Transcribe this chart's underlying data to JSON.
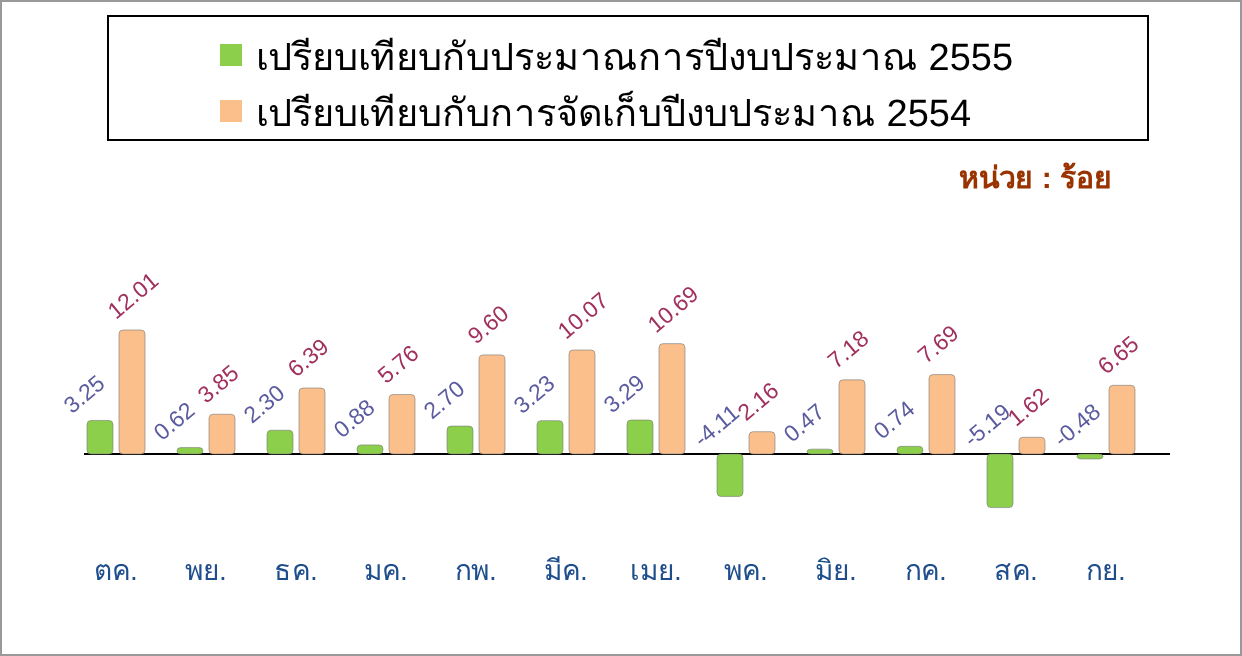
{
  "chart_data": {
    "type": "bar",
    "categories": [
      "ตค.",
      "พย.",
      "ธค.",
      "มค.",
      "กพ.",
      "มีค.",
      "เมย.",
      "พค.",
      "มิย.",
      "กค.",
      "สค.",
      "กย."
    ],
    "series": [
      {
        "name": "เปรียบเทียบกับประมาณการปีงบประมาณ 2555",
        "color": "#8ccf4a",
        "values": [
          3.25,
          0.62,
          2.3,
          0.88,
          2.7,
          3.23,
          3.29,
          -4.11,
          0.47,
          0.74,
          -5.19,
          -0.48
        ],
        "value_labels": [
          "3.25",
          "0.62",
          "2.30",
          "0.88",
          "2.70",
          "3.23",
          "3.29",
          "-4.11",
          "0.47",
          "0.74",
          "-5.19",
          "-0.48"
        ]
      },
      {
        "name": "เปรียบเทียบกับการจัดเก็บปีงบประมาณ 2554",
        "color": "#fbbf8c",
        "values": [
          12.01,
          3.85,
          6.39,
          5.76,
          9.6,
          10.07,
          10.69,
          2.16,
          7.18,
          7.69,
          1.62,
          6.65
        ],
        "value_labels": [
          "12.01",
          "3.85",
          "6.39",
          "5.76",
          "9.60",
          "10.07",
          "10.69",
          "2.16",
          "7.18",
          "7.69",
          "1.62",
          "6.65"
        ]
      }
    ],
    "legend": "top",
    "annotations": [
      "หน่วย : ร้อย"
    ]
  }
}
